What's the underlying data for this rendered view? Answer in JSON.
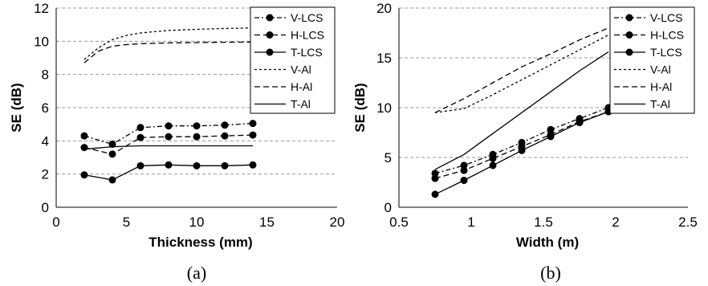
{
  "chart_data": [
    {
      "type": "line",
      "caption": "(a)",
      "xlabel": "Thickness (mm)",
      "ylabel": "SE (dB)",
      "xlim": [
        0,
        20
      ],
      "ylim": [
        0,
        12
      ],
      "xticks": [
        0,
        5,
        10,
        15,
        20
      ],
      "yticks": [
        0,
        2,
        4,
        6,
        8,
        10,
        12
      ],
      "grid": "horizontal dashed",
      "legend": "top-right",
      "series": [
        {
          "name": "V-LCS",
          "style": "dash-dot",
          "markers": true,
          "x": [
            2,
            4,
            6,
            8,
            10,
            12,
            14
          ],
          "y": [
            4.3,
            3.8,
            4.8,
            4.9,
            4.9,
            4.95,
            5.05
          ]
        },
        {
          "name": "H-LCS",
          "style": "dashed",
          "markers": true,
          "x": [
            2,
            4,
            6,
            8,
            10,
            12,
            14
          ],
          "y": [
            3.6,
            3.2,
            4.2,
            4.25,
            4.25,
            4.3,
            4.35
          ]
        },
        {
          "name": "T-LCS",
          "style": "solid",
          "markers": true,
          "x": [
            2,
            4,
            6,
            8,
            10,
            12,
            14
          ],
          "y": [
            1.95,
            1.65,
            2.5,
            2.55,
            2.5,
            2.5,
            2.55
          ]
        },
        {
          "name": "V-Al",
          "style": "dotted",
          "markers": false,
          "x": [
            2,
            3,
            4,
            5,
            6,
            8,
            10,
            12,
            14
          ],
          "y": [
            8.9,
            9.6,
            10.1,
            10.35,
            10.5,
            10.65,
            10.72,
            10.77,
            10.8
          ]
        },
        {
          "name": "H-Al",
          "style": "dashed",
          "markers": false,
          "x": [
            2,
            3,
            4,
            5,
            6,
            8,
            10,
            12,
            14
          ],
          "y": [
            8.7,
            9.4,
            9.7,
            9.8,
            9.85,
            9.9,
            9.92,
            9.94,
            9.95
          ]
        },
        {
          "name": "T-Al",
          "style": "solid",
          "markers": false,
          "x": [
            2,
            4,
            6,
            8,
            10,
            12,
            14
          ],
          "y": [
            3.5,
            3.65,
            3.7,
            3.7,
            3.7,
            3.7,
            3.7
          ]
        }
      ]
    },
    {
      "type": "line",
      "caption": "(b)",
      "xlabel": "Width (m)",
      "ylabel": "SE (dB)",
      "xlim": [
        0.5,
        2.5
      ],
      "ylim": [
        0,
        20
      ],
      "xticks": [
        "0.5",
        "1",
        "1.5",
        "2",
        "2.5"
      ],
      "yticks": [
        0,
        5,
        10,
        15,
        20
      ],
      "grid": "horizontal dashed",
      "legend": "top-right",
      "series": [
        {
          "name": "V-LCS",
          "style": "dash-dot",
          "markers": true,
          "x": [
            0.75,
            0.95,
            1.15,
            1.35,
            1.55,
            1.75,
            1.95
          ],
          "y": [
            3.4,
            4.2,
            5.3,
            6.5,
            7.8,
            8.9,
            10.0
          ]
        },
        {
          "name": "H-LCS",
          "style": "dashed",
          "markers": true,
          "x": [
            0.75,
            0.95,
            1.15,
            1.35,
            1.55,
            1.75,
            1.95
          ],
          "y": [
            2.9,
            3.7,
            4.9,
            6.1,
            7.3,
            8.6,
            9.6
          ]
        },
        {
          "name": "T-LCS",
          "style": "solid",
          "markers": true,
          "x": [
            0.75,
            0.95,
            1.15,
            1.35,
            1.55,
            1.75,
            1.95
          ],
          "y": [
            1.3,
            2.7,
            4.2,
            5.7,
            7.1,
            8.5,
            9.6
          ]
        },
        {
          "name": "V-Al",
          "style": "dotted",
          "markers": false,
          "x": [
            0.75,
            0.95,
            1.15,
            1.35,
            1.55,
            1.75,
            1.95
          ],
          "y": [
            9.5,
            9.9,
            11.3,
            12.8,
            14.3,
            15.8,
            17.3
          ]
        },
        {
          "name": "H-Al",
          "style": "dashed",
          "markers": false,
          "x": [
            0.75,
            0.95,
            1.15,
            1.35,
            1.55,
            1.75,
            1.95
          ],
          "y": [
            9.5,
            10.9,
            12.5,
            14.1,
            15.4,
            16.8,
            18.0
          ]
        },
        {
          "name": "T-Al",
          "style": "solid",
          "markers": false,
          "x": [
            0.75,
            0.95,
            1.15,
            1.35,
            1.55,
            1.75,
            1.95
          ],
          "y": [
            3.8,
            5.3,
            7.4,
            9.5,
            11.6,
            13.7,
            15.6
          ]
        }
      ]
    }
  ]
}
